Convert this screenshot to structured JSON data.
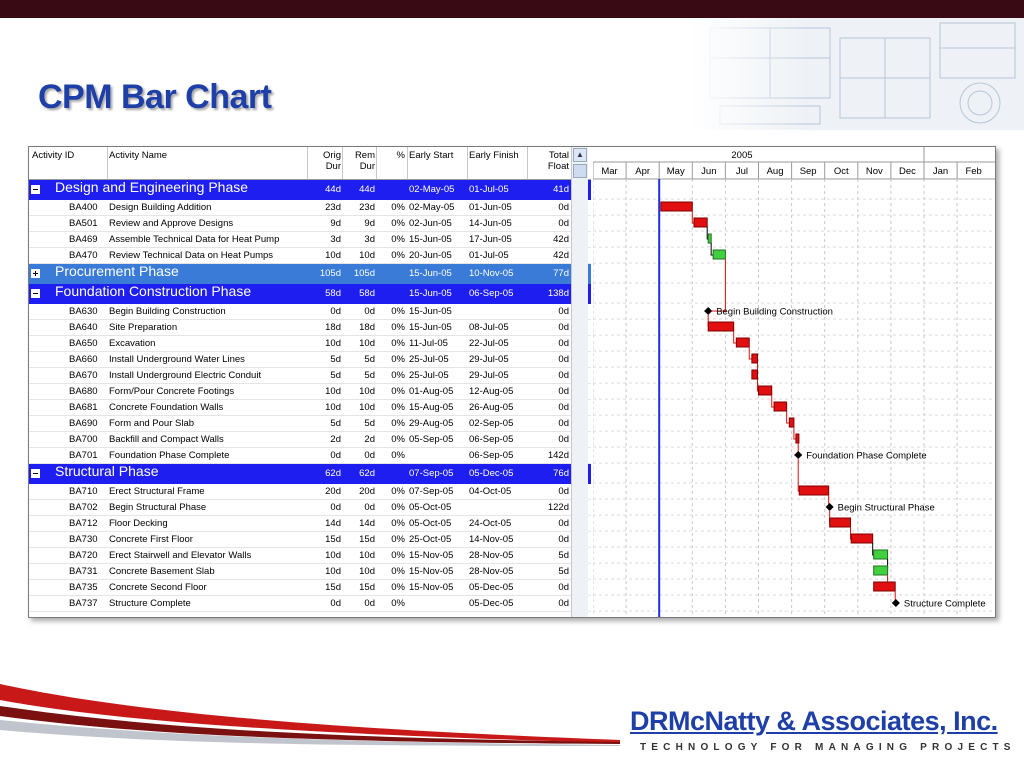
{
  "slide": {
    "title": "CPM Bar Chart"
  },
  "footer": {
    "company": "DRMcNatty & Associates, Inc.",
    "tagline": "TECHNOLOGY FOR MANAGING PROJECTS"
  },
  "colors": {
    "title_blue": "#1f3fa8",
    "group_blue": "#1e1ef0",
    "group_light_blue": "#3a7bd8",
    "critical_bar": "#e01010",
    "noncritical_bar": "#40d040",
    "data_date_line": "#2030e0"
  },
  "columns": {
    "activity_id": "Activity ID",
    "activity_name": "Activity Name",
    "orig_dur": [
      "Orig",
      "Dur"
    ],
    "rem_dur": [
      "Rem",
      "Dur"
    ],
    "pct": "%",
    "early_start": "Early Start",
    "early_finish": "Early Finish",
    "total_float": [
      "Total",
      "Float"
    ]
  },
  "timescale": {
    "year": "2005",
    "months": [
      "Mar",
      "Apr",
      "May",
      "Jun",
      "Jul",
      "Aug",
      "Sep",
      "Oct",
      "Nov",
      "Dec",
      "Jan",
      "Feb"
    ]
  },
  "rows": [
    {
      "type": "group",
      "style": "blue",
      "toggle": "minus",
      "name": "Design and Engineering Phase",
      "od": "44d",
      "rd": "44d",
      "es": "02-May-05",
      "ef": "01-Jul-05",
      "tf": "41d"
    },
    {
      "type": "act",
      "id": "BA400",
      "name": "Design Building Addition",
      "od": "23d",
      "rd": "23d",
      "pc": "0%",
      "es": "02-May-05",
      "ef": "01-Jun-05",
      "tf": "0d",
      "bar": {
        "s": 2.05,
        "e": 3.0,
        "c": "crit"
      }
    },
    {
      "type": "act",
      "id": "BA501",
      "name": "Review and Approve Designs",
      "od": "9d",
      "rd": "9d",
      "pc": "0%",
      "es": "02-Jun-05",
      "ef": "14-Jun-05",
      "tf": "0d",
      "bar": {
        "s": 3.05,
        "e": 3.45,
        "c": "crit"
      }
    },
    {
      "type": "act",
      "id": "BA469",
      "name": "Assemble Technical Data for Heat Pump",
      "od": "3d",
      "rd": "3d",
      "pc": "0%",
      "es": "15-Jun-05",
      "ef": "17-Jun-05",
      "tf": "42d",
      "bar": {
        "s": 3.48,
        "e": 3.57,
        "c": "ok"
      }
    },
    {
      "type": "act",
      "id": "BA470",
      "name": "Review Technical Data on Heat Pumps",
      "od": "10d",
      "rd": "10d",
      "pc": "0%",
      "es": "20-Jun-05",
      "ef": "01-Jul-05",
      "tf": "42d",
      "bar": {
        "s": 3.63,
        "e": 4.0,
        "c": "ok"
      }
    },
    {
      "type": "group",
      "style": "lblue",
      "toggle": "plus",
      "name": "Procurement Phase",
      "od": "105d",
      "rd": "105d",
      "es": "15-Jun-05",
      "ef": "10-Nov-05",
      "tf": "77d"
    },
    {
      "type": "group",
      "style": "blue",
      "toggle": "minus",
      "name": "Foundation Construction Phase",
      "od": "58d",
      "rd": "58d",
      "es": "15-Jun-05",
      "ef": "06-Sep-05",
      "tf": "138d"
    },
    {
      "type": "act",
      "id": "BA630",
      "name": "Begin Building Construction",
      "od": "0d",
      "rd": "0d",
      "pc": "0%",
      "es": "15-Jun-05",
      "ef": "",
      "tf": "0d",
      "ms": {
        "t": 3.48,
        "label": "Begin Building Construction"
      }
    },
    {
      "type": "act",
      "id": "BA640",
      "name": "Site Preparation",
      "od": "18d",
      "rd": "18d",
      "pc": "0%",
      "es": "15-Jun-05",
      "ef": "08-Jul-05",
      "tf": "0d",
      "bar": {
        "s": 3.48,
        "e": 4.25,
        "c": "crit"
      }
    },
    {
      "type": "act",
      "id": "BA650",
      "name": "Excavation",
      "od": "10d",
      "rd": "10d",
      "pc": "0%",
      "es": "11-Jul-05",
      "ef": "22-Jul-05",
      "tf": "0d",
      "bar": {
        "s": 4.33,
        "e": 4.72,
        "c": "crit"
      }
    },
    {
      "type": "act",
      "id": "BA660",
      "name": "Install Underground Water Lines",
      "od": "5d",
      "rd": "5d",
      "pc": "0%",
      "es": "25-Jul-05",
      "ef": "29-Jul-05",
      "tf": "0d",
      "bar": {
        "s": 4.8,
        "e": 4.97,
        "c": "crit"
      }
    },
    {
      "type": "act",
      "id": "BA670",
      "name": "Install Underground Electric Conduit",
      "od": "5d",
      "rd": "5d",
      "pc": "0%",
      "es": "25-Jul-05",
      "ef": "29-Jul-05",
      "tf": "0d",
      "bar": {
        "s": 4.8,
        "e": 4.97,
        "c": "crit"
      }
    },
    {
      "type": "act",
      "id": "BA680",
      "name": "Form/Pour Concrete Footings",
      "od": "10d",
      "rd": "10d",
      "pc": "0%",
      "es": "01-Aug-05",
      "ef": "12-Aug-05",
      "tf": "0d",
      "bar": {
        "s": 5.0,
        "e": 5.4,
        "c": "crit"
      }
    },
    {
      "type": "act",
      "id": "BA681",
      "name": "Concrete Foundation Walls",
      "od": "10d",
      "rd": "10d",
      "pc": "0%",
      "es": "15-Aug-05",
      "ef": "26-Aug-05",
      "tf": "0d",
      "bar": {
        "s": 5.47,
        "e": 5.85,
        "c": "crit"
      }
    },
    {
      "type": "act",
      "id": "BA690",
      "name": "Form and Pour Slab",
      "od": "5d",
      "rd": "5d",
      "pc": "0%",
      "es": "29-Aug-05",
      "ef": "02-Sep-05",
      "tf": "0d",
      "bar": {
        "s": 5.93,
        "e": 6.07,
        "c": "crit"
      }
    },
    {
      "type": "act",
      "id": "BA700",
      "name": "Backfill and Compact Walls",
      "od": "2d",
      "rd": "2d",
      "pc": "0%",
      "es": "05-Sep-05",
      "ef": "06-Sep-05",
      "tf": "0d",
      "bar": {
        "s": 6.13,
        "e": 6.2,
        "c": "crit"
      }
    },
    {
      "type": "act",
      "id": "BA701",
      "name": "Foundation Phase Complete",
      "od": "0d",
      "rd": "0d",
      "pc": "0%",
      "es": "",
      "ef": "06-Sep-05",
      "tf": "142d",
      "ms": {
        "t": 6.2,
        "label": "Foundation Phase Complete"
      }
    },
    {
      "type": "group",
      "style": "blue",
      "toggle": "minus",
      "name": "Structural Phase",
      "od": "62d",
      "rd": "62d",
      "es": "07-Sep-05",
      "ef": "05-Dec-05",
      "tf": "76d"
    },
    {
      "type": "act",
      "id": "BA710",
      "name": "Erect Structural Frame",
      "od": "20d",
      "rd": "20d",
      "pc": "0%",
      "es": "07-Sep-05",
      "ef": "04-Oct-05",
      "tf": "0d",
      "bar": {
        "s": 6.23,
        "e": 7.12,
        "c": "crit"
      }
    },
    {
      "type": "act",
      "id": "BA702",
      "name": "Begin Structural Phase",
      "od": "0d",
      "rd": "0d",
      "pc": "0%",
      "es": "05-Oct-05",
      "ef": "",
      "tf": "122d",
      "ms": {
        "t": 7.15,
        "label": "Begin Structural Phase"
      }
    },
    {
      "type": "act",
      "id": "BA712",
      "name": "Floor Decking",
      "od": "14d",
      "rd": "14d",
      "pc": "0%",
      "es": "05-Oct-05",
      "ef": "24-Oct-05",
      "tf": "0d",
      "bar": {
        "s": 7.15,
        "e": 7.78,
        "c": "crit"
      }
    },
    {
      "type": "act",
      "id": "BA730",
      "name": "Concrete First Floor",
      "od": "15d",
      "rd": "15d",
      "pc": "0%",
      "es": "25-Oct-05",
      "ef": "14-Nov-05",
      "tf": "0d",
      "bar": {
        "s": 7.8,
        "e": 8.45,
        "c": "crit"
      }
    },
    {
      "type": "act",
      "id": "BA720",
      "name": "Erect Stairwell and Elevator Walls",
      "od": "10d",
      "rd": "10d",
      "pc": "0%",
      "es": "15-Nov-05",
      "ef": "28-Nov-05",
      "tf": "5d",
      "bar": {
        "s": 8.48,
        "e": 8.9,
        "c": "ok"
      }
    },
    {
      "type": "act",
      "id": "BA731",
      "name": "Concrete Basement Slab",
      "od": "10d",
      "rd": "10d",
      "pc": "0%",
      "es": "15-Nov-05",
      "ef": "28-Nov-05",
      "tf": "5d",
      "bar": {
        "s": 8.48,
        "e": 8.9,
        "c": "ok"
      }
    },
    {
      "type": "act",
      "id": "BA735",
      "name": "Concrete Second Floor",
      "od": "15d",
      "rd": "15d",
      "pc": "0%",
      "es": "15-Nov-05",
      "ef": "05-Dec-05",
      "tf": "0d",
      "bar": {
        "s": 8.48,
        "e": 9.13,
        "c": "crit"
      }
    },
    {
      "type": "act",
      "id": "BA737",
      "name": "Structure Complete",
      "od": "0d",
      "rd": "0d",
      "pc": "0%",
      "es": "",
      "ef": "05-Dec-05",
      "tf": "0d",
      "ms": {
        "t": 9.15,
        "label": "Structure Complete"
      }
    }
  ]
}
